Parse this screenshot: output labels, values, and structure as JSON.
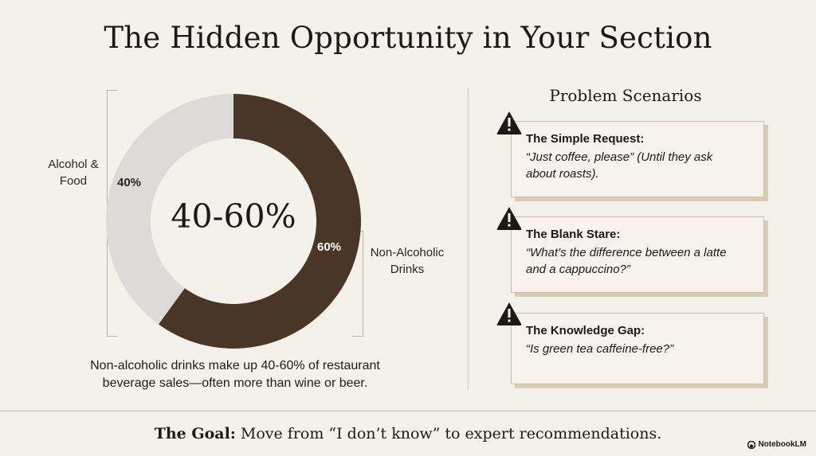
{
  "title": "The Hidden Opportunity in Your Section",
  "chart_data": {
    "type": "pie",
    "categories": [
      "Non-Alcoholic Drinks",
      "Alcohol & Food"
    ],
    "values": [
      60,
      40
    ],
    "value_labels": [
      "60%",
      "40%"
    ],
    "center_value": "40-60%",
    "colors": [
      "#4a3627",
      "#dcdbd8"
    ],
    "labels": {
      "alcohol_line1": "Alcohol &",
      "alcohol_line2": "Food",
      "non_alc_line1": "Non-Alcoholic",
      "non_alc_line2": "Drinks"
    }
  },
  "caption": {
    "line1": "Non-alcoholic drinks make up 40-60% of restaurant",
    "line2": "beverage sales—often more than wine or beer."
  },
  "panel": {
    "title": "Problem Scenarios",
    "cards": [
      {
        "heading": "The Simple Request:",
        "quote_line1": "“Just coffee, please” (Until they ask",
        "quote_line2": "about roasts)."
      },
      {
        "heading": "The Blank Stare:",
        "quote_line1": "“What’s the difference between a latte",
        "quote_line2": "and a cappuccino?”"
      },
      {
        "heading": "The Knowledge Gap:",
        "quote_line1": "“Is green tea caffeine-free?”",
        "quote_line2": ""
      }
    ]
  },
  "footer": {
    "goal_label": "The Goal:",
    "goal_text": " Move from “I don’t know” to expert recommendations.",
    "brand": "NotebookLM"
  },
  "icons": {
    "warning": "warning-icon",
    "brand": "notebooklm-logo-icon"
  }
}
